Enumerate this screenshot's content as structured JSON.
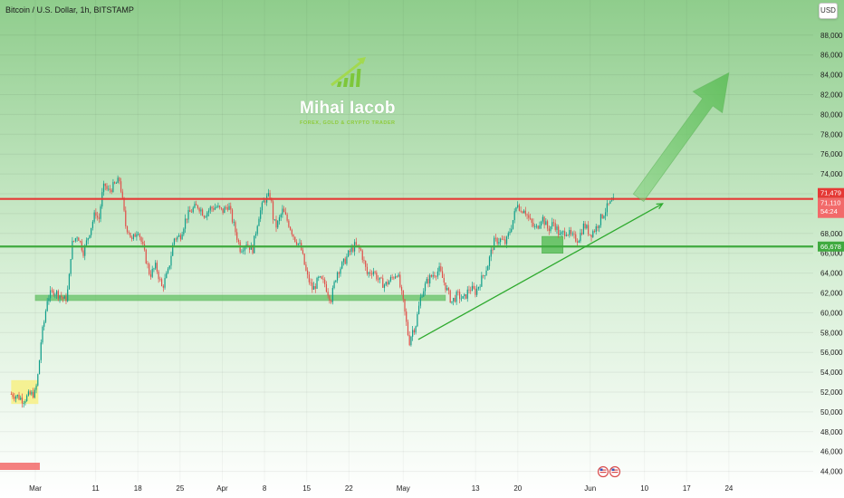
{
  "header": {
    "title": "Bitcoin / U.S. Dollar, 1h, BITSTAMP",
    "currency": "USD"
  },
  "logo": {
    "name": "Mihai Iacob",
    "tagline": "FOREX, GOLD & CRYPTO TRADER"
  },
  "colors": {
    "bg_top": "#8fcd8c",
    "bg_bottom": "#ffffff",
    "candle_up": "#0f9d8a",
    "candle_down": "#e0504a",
    "resistance_line": "#e53935",
    "support_line": "#3faa3f",
    "trendline": "#2eaa2e",
    "zone_fill": "#5cbf5c",
    "yellow_zone": "#f6ef8a",
    "red_tag": "#f26a6a",
    "green_tag": "#3faa3f"
  },
  "price_tags": {
    "resistance": "71,479",
    "current_price": "71,110",
    "countdown": "54:24",
    "support": "66,678"
  },
  "chart_data": {
    "type": "candlestick",
    "title": "Bitcoin / U.S. Dollar, 1h, BITSTAMP",
    "ylim": [
      43000,
      90500
    ],
    "y_ticks": [
      44000,
      46000,
      48000,
      50000,
      52000,
      54000,
      56000,
      58000,
      60000,
      62000,
      64000,
      66000,
      68000,
      70000,
      72000,
      74000,
      76000,
      78000,
      80000,
      82000,
      84000,
      86000,
      88000
    ],
    "y_tick_labels": [
      "44,000",
      "46,000",
      "48,000",
      "50,000",
      "52,000",
      "54,000",
      "56,000",
      "58,000",
      "60,000",
      "62,000",
      "64,000",
      "66,000",
      "68,000",
      "70,000",
      "72,000",
      "74,000",
      "76,000",
      "78,000",
      "80,000",
      "82,000",
      "84,000",
      "86,000",
      "88,000"
    ],
    "x_tick_labels": [
      "Mar",
      "11",
      "18",
      "25",
      "Apr",
      "8",
      "15",
      "22",
      "May",
      "13",
      "20",
      "Jun",
      "10",
      "17",
      "24"
    ],
    "x_tick_days": [
      0,
      10,
      17,
      24,
      31,
      38,
      45,
      52,
      61,
      73,
      80,
      92,
      101,
      108,
      115
    ],
    "price_path": [
      [
        -4,
        51800
      ],
      [
        -3,
        51600
      ],
      [
        -2,
        51200
      ],
      [
        -1,
        51700
      ],
      [
        0,
        51900
      ],
      [
        0.5,
        54000
      ],
      [
        1,
        57500
      ],
      [
        1.5,
        59200
      ],
      [
        2,
        61500
      ],
      [
        3,
        62200
      ],
      [
        4,
        61800
      ],
      [
        5,
        61200
      ],
      [
        5.5,
        62600
      ],
      [
        6,
        66800
      ],
      [
        7,
        67900
      ],
      [
        8,
        66100
      ],
      [
        9,
        68200
      ],
      [
        10,
        70200
      ],
      [
        10.5,
        69200
      ],
      [
        11,
        71700
      ],
      [
        11.5,
        73000
      ],
      [
        12,
        72200
      ],
      [
        13,
        72800
      ],
      [
        14,
        73400
      ],
      [
        15,
        68700
      ],
      [
        15.5,
        68300
      ],
      [
        16,
        67200
      ],
      [
        17,
        68500
      ],
      [
        18,
        66200
      ],
      [
        19,
        63800
      ],
      [
        20,
        64700
      ],
      [
        21,
        62500
      ],
      [
        22,
        64100
      ],
      [
        23,
        67500
      ],
      [
        24,
        67700
      ],
      [
        25,
        69600
      ],
      [
        26,
        70400
      ],
      [
        27,
        70800
      ],
      [
        28,
        69900
      ],
      [
        29,
        70500
      ],
      [
        30,
        70700
      ],
      [
        31,
        70200
      ],
      [
        32,
        70900
      ],
      [
        33,
        68600
      ],
      [
        34,
        66400
      ],
      [
        35,
        67100
      ],
      [
        36,
        66300
      ],
      [
        37,
        69700
      ],
      [
        38,
        71400
      ],
      [
        39,
        71800
      ],
      [
        39.5,
        69200
      ],
      [
        40,
        68700
      ],
      [
        41,
        70300
      ],
      [
        42,
        69000
      ],
      [
        43,
        67500
      ],
      [
        44,
        66600
      ],
      [
        45,
        63800
      ],
      [
        46,
        62300
      ],
      [
        47,
        63400
      ],
      [
        48,
        62900
      ],
      [
        49,
        61300
      ],
      [
        50,
        64100
      ],
      [
        51,
        64900
      ],
      [
        52,
        66000
      ],
      [
        53,
        66800
      ],
      [
        54,
        66200
      ],
      [
        55,
        63900
      ],
      [
        56,
        64300
      ],
      [
        57,
        63200
      ],
      [
        58,
        62800
      ],
      [
        59,
        63400
      ],
      [
        60,
        64100
      ],
      [
        61,
        61000
      ],
      [
        62,
        57000
      ],
      [
        62.5,
        58200
      ],
      [
        63,
        58600
      ],
      [
        64,
        61900
      ],
      [
        65,
        63200
      ],
      [
        66,
        63900
      ],
      [
        67,
        64300
      ],
      [
        68,
        62700
      ],
      [
        69,
        61100
      ],
      [
        70,
        61800
      ],
      [
        71,
        61300
      ],
      [
        72,
        62500
      ],
      [
        73,
        62100
      ],
      [
        74,
        63400
      ],
      [
        75,
        64800
      ],
      [
        76,
        67100
      ],
      [
        77,
        67400
      ],
      [
        78,
        67000
      ],
      [
        79,
        68900
      ],
      [
        80,
        71200
      ],
      [
        80.5,
        70200
      ],
      [
        81,
        70600
      ],
      [
        82,
        69200
      ],
      [
        83,
        68400
      ],
      [
        84,
        69700
      ],
      [
        85,
        68400
      ],
      [
        86,
        69100
      ],
      [
        87,
        67700
      ],
      [
        88,
        68300
      ],
      [
        89,
        67600
      ],
      [
        90,
        67400
      ],
      [
        91,
        68900
      ],
      [
        92,
        67900
      ],
      [
        93,
        68600
      ],
      [
        94,
        69800
      ],
      [
        95,
        70800
      ],
      [
        96,
        71300
      ]
    ],
    "annotations": {
      "resistance_price": 71479,
      "support_price": 66678,
      "lower_support_price": 61500,
      "trendline_start": [
        63.5,
        57300
      ],
      "trendline_end": [
        104,
        71000
      ],
      "breakout_box": [
        84,
        66000,
        87.5,
        67700
      ],
      "yellow_zone": [
        -4,
        50800,
        0.5,
        53200
      ],
      "arrow_start": [
        100,
        71600
      ],
      "arrow_end": [
        115,
        84200
      ]
    }
  }
}
